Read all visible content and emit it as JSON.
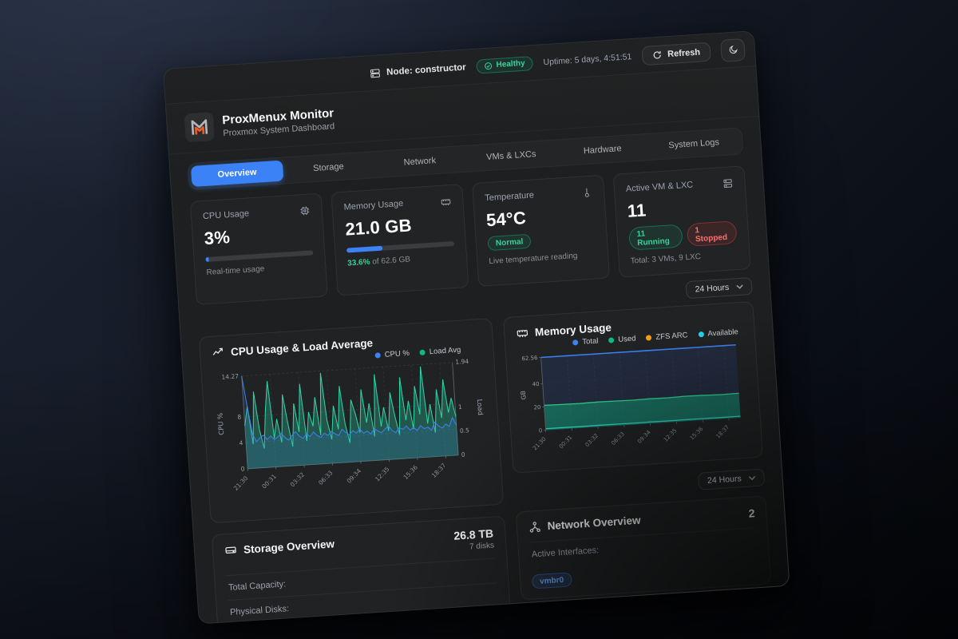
{
  "colors": {
    "accent_blue": "#3b82f6",
    "status_green": "#10b981",
    "status_red": "#ef4444",
    "brand_orange": "#f97316",
    "cyan": "#22d3ee",
    "zfs_orange": "#f59e0b"
  },
  "topbar": {
    "node_label": "Node: constructor",
    "health_badge": "Healthy",
    "uptime": "Uptime: 5 days, 4:51:51",
    "refresh_label": "Refresh"
  },
  "brand": {
    "title": "ProxMenux Monitor",
    "subtitle": "Proxmox System Dashboard"
  },
  "tabs": [
    {
      "label": "Overview",
      "active": true
    },
    {
      "label": "Storage",
      "active": false
    },
    {
      "label": "Network",
      "active": false
    },
    {
      "label": "VMs & LXCs",
      "active": false
    },
    {
      "label": "Hardware",
      "active": false
    },
    {
      "label": "System Logs",
      "active": false
    }
  ],
  "stat_cards": {
    "cpu": {
      "label": "CPU Usage",
      "value": "3%",
      "percent": 3,
      "subtitle": "Real-time usage"
    },
    "memory": {
      "label": "Memory Usage",
      "value": "21.0 GB",
      "percent": 33.6,
      "detail_percent": "33.6%",
      "detail_rest": " of 62.6 GB"
    },
    "temperature": {
      "label": "Temperature",
      "value": "54°C",
      "badge": "Normal",
      "subtitle": "Live temperature reading"
    },
    "vms": {
      "label": "Active VM & LXC",
      "value": "11",
      "running_badge": "11 Running",
      "stopped_badge": "1 Stopped",
      "subtitle": "Total: 3 VMs, 9 LXC"
    }
  },
  "time_range": {
    "label": "24 Hours"
  },
  "time_range2": {
    "label": "24 Hours"
  },
  "chart_data": [
    {
      "type": "line",
      "title": "CPU Usage & Load Average",
      "legend": [
        {
          "label": "CPU %",
          "color": "#3b82f6"
        },
        {
          "label": "Load Avg",
          "color": "#10b981"
        }
      ],
      "x_ticks": [
        "21:30",
        "00:31",
        "03:32",
        "06:33",
        "09:34",
        "12:35",
        "15:36",
        "18:37"
      ],
      "left_axis": {
        "label": "CPU %",
        "ticks": [
          0,
          4,
          8,
          14.27
        ],
        "max": 14.27
      },
      "right_axis": {
        "label": "Load",
        "ticks": [
          0,
          0.5,
          1,
          1.94
        ],
        "max": 1.94
      },
      "series": [
        {
          "name": "CPU %",
          "axis": "left",
          "color": "#3b82f6",
          "values": [
            14.27,
            9.5,
            5.2,
            4.1,
            4.6,
            5.0,
            4.3,
            4.8,
            4.2,
            4.6,
            5.1,
            4.4,
            4.0,
            4.7,
            5.2,
            4.5,
            4.1,
            4.8,
            4.3,
            5.0,
            4.4,
            4.1,
            4.7,
            4.3,
            4.9,
            4.5,
            4.2,
            5.1,
            4.6,
            4.2,
            4.8,
            4.4,
            5.0,
            4.3,
            4.6,
            4.1,
            4.9,
            4.5,
            4.2,
            4.7,
            5.2,
            4.4,
            4.1,
            4.8,
            4.5,
            5.0,
            4.3,
            4.7,
            4.2,
            4.9,
            4.4,
            4.6,
            4.1,
            5.3,
            4.7,
            4.3,
            4.9,
            4.5,
            5.8,
            4.6
          ]
        },
        {
          "name": "Load Avg",
          "axis": "right",
          "color": "#10b981",
          "values": [
            0.9,
            1.3,
            0.5,
            1.6,
            0.8,
            0.4,
            1.2,
            1.8,
            0.6,
            1.0,
            0.5,
            1.5,
            0.9,
            0.4,
            1.3,
            0.7,
            1.7,
            0.5,
            1.1,
            0.8,
            1.4,
            0.6,
            1.9,
            0.9,
            0.5,
            1.2,
            0.7,
            1.6,
            0.8,
            0.4,
            1.3,
            1.0,
            0.6,
            1.5,
            0.8,
            1.2,
            0.5,
            1.8,
            0.7,
            1.1,
            0.6,
            1.4,
            0.9,
            0.5,
            1.7,
            0.8,
            1.2,
            0.6,
            1.5,
            0.9,
            1.9,
            0.7,
            1.1,
            0.5,
            1.4,
            0.8,
            1.6,
            0.9,
            1.2,
            0.8
          ]
        }
      ]
    },
    {
      "type": "area",
      "title": "Memory Usage",
      "legend": [
        {
          "label": "Total",
          "color": "#3b82f6"
        },
        {
          "label": "Used",
          "color": "#10b981"
        },
        {
          "label": "ZFS ARC",
          "color": "#f59e0b"
        },
        {
          "label": "Available",
          "color": "#22d3ee"
        }
      ],
      "x_ticks": [
        "21:30",
        "00:31",
        "03:32",
        "06:33",
        "09:34",
        "12:35",
        "15:36",
        "18:37"
      ],
      "y_axis": {
        "label": "GB",
        "ticks": [
          0,
          20,
          40,
          62.56
        ],
        "max": 62.56
      },
      "series": [
        {
          "name": "Total",
          "color": "#3b82f6",
          "values": [
            62.56,
            62.56,
            62.56,
            62.56,
            62.56,
            62.56,
            62.56,
            62.56,
            62.56,
            62.56,
            62.56,
            62.56
          ]
        },
        {
          "name": "Used",
          "color": "#10b981",
          "values": [
            21.5,
            21.2,
            21.0,
            21.3,
            21.1,
            20.9,
            21.2,
            21.0,
            21.4,
            21.1,
            20.8,
            21.0
          ]
        },
        {
          "name": "ZFS ARC",
          "color": "#f59e0b",
          "values": [
            1.3,
            1.3,
            1.2,
            1.3,
            1.3,
            1.2,
            1.3,
            1.2,
            1.3,
            1.3,
            1.2,
            1.3
          ]
        },
        {
          "name": "Available",
          "color": "#22d3ee",
          "values": [
            40.9,
            41.2,
            41.4,
            41.1,
            41.3,
            41.5,
            41.2,
            41.4,
            41.0,
            41.3,
            41.6,
            41.4
          ]
        }
      ]
    }
  ],
  "storage": {
    "title": "Storage Overview",
    "summary_value": "26.8 TB",
    "summary_sub": "7 disks",
    "rows": [
      {
        "label": "Total Capacity:"
      },
      {
        "label": "Physical Disks:"
      }
    ]
  },
  "network": {
    "title": "Network Overview",
    "summary_value": "2",
    "row_label": "Active Interfaces:",
    "badge": "vmbr0"
  }
}
